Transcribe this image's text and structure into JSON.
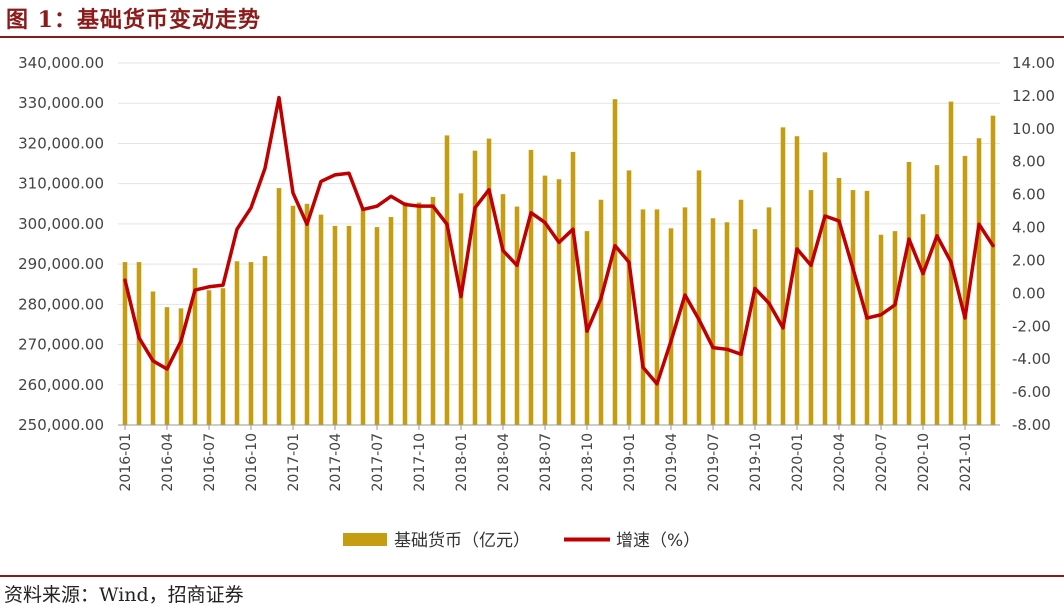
{
  "header": {
    "title": "图 1：基础货币变动走势"
  },
  "footer": {
    "source": "资料来源：Wind，招商证券"
  },
  "colors": {
    "bar": "#c59d10",
    "line": "#c00000",
    "accent": "#8b1a1a"
  },
  "chart_data": {
    "type": "bar+line",
    "categories": [
      "2016-01",
      "2016-02",
      "2016-03",
      "2016-04",
      "2016-05",
      "2016-06",
      "2016-07",
      "2016-08",
      "2016-09",
      "2016-10",
      "2016-11",
      "2016-12",
      "2017-01",
      "2017-02",
      "2017-03",
      "2017-04",
      "2017-05",
      "2017-06",
      "2017-07",
      "2017-08",
      "2017-09",
      "2017-10",
      "2017-11",
      "2017-12",
      "2018-01",
      "2018-02",
      "2018-03",
      "2018-04",
      "2018-05",
      "2018-06",
      "2018-07",
      "2018-08",
      "2018-09",
      "2018-10",
      "2018-11",
      "2018-12",
      "2019-01",
      "2019-02",
      "2019-03",
      "2019-04",
      "2019-05",
      "2019-06",
      "2019-07",
      "2019-08",
      "2019-09",
      "2019-10",
      "2019-11",
      "2019-12",
      "2020-01",
      "2020-02",
      "2020-03",
      "2020-04",
      "2020-05",
      "2020-06",
      "2020-07",
      "2020-08",
      "2020-09",
      "2020-10",
      "2020-11",
      "2020-12",
      "2021-01",
      "2021-02",
      "2021-03"
    ],
    "xtick_labels": [
      "2016-01",
      "2016-04",
      "2016-07",
      "2016-10",
      "2017-01",
      "2017-04",
      "2017-07",
      "2017-10",
      "2018-01",
      "2018-04",
      "2018-07",
      "2018-10",
      "2019-01",
      "2019-04",
      "2019-07",
      "2019-10",
      "2020-01",
      "2020-04",
      "2020-07",
      "2020-10",
      "2021-01"
    ],
    "series": [
      {
        "name": "基础货币（亿元）",
        "type": "bar",
        "axis": "left",
        "values": [
          290500,
          290500,
          283200,
          279300,
          279000,
          289000,
          283500,
          284000,
          290700,
          290500,
          292000,
          308900,
          304500,
          305000,
          302300,
          299500,
          299500,
          304000,
          299200,
          301700,
          305400,
          305300,
          306700,
          322000,
          307600,
          318200,
          321200,
          307400,
          304300,
          318400,
          312000,
          311100,
          317900,
          298200,
          306000,
          331000,
          313300,
          303600,
          303600,
          298900,
          304100,
          313300,
          301400,
          300400,
          306000,
          298700,
          304100,
          324000,
          321800,
          308400,
          317800,
          311400,
          308400,
          308200,
          297300,
          298200,
          315400,
          302400,
          314600,
          330400,
          316900,
          321300,
          326900
        ]
      },
      {
        "name": "增速（%）",
        "type": "line",
        "axis": "right",
        "values": [
          0.8,
          -2.7,
          -4.1,
          -4.6,
          -2.9,
          0.2,
          0.4,
          0.5,
          3.9,
          5.2,
          7.6,
          11.9,
          6.1,
          4.2,
          6.8,
          7.2,
          7.3,
          5.1,
          5.3,
          5.9,
          5.4,
          5.3,
          5.3,
          4.2,
          -0.2,
          5.2,
          6.3,
          2.6,
          1.7,
          4.9,
          4.3,
          3.1,
          3.9,
          -2.3,
          -0.3,
          2.9,
          1.9,
          -4.5,
          -5.5,
          -2.9,
          -0.1,
          -1.6,
          -3.3,
          -3.4,
          -3.7,
          0.3,
          -0.6,
          -2.1,
          2.7,
          1.7,
          4.7,
          4.4,
          1.5,
          -1.5,
          -1.3,
          -0.7,
          3.3,
          1.2,
          3.5,
          1.9,
          -1.5,
          4.2,
          2.9
        ]
      }
    ],
    "y_left": {
      "min": 250000,
      "max": 340000,
      "step": 10000,
      "tick_format": "comma2"
    },
    "y_right": {
      "min": -8,
      "max": 14,
      "step": 2,
      "tick_format": "fixed2"
    },
    "grid": true,
    "legend": "bottom-center"
  }
}
